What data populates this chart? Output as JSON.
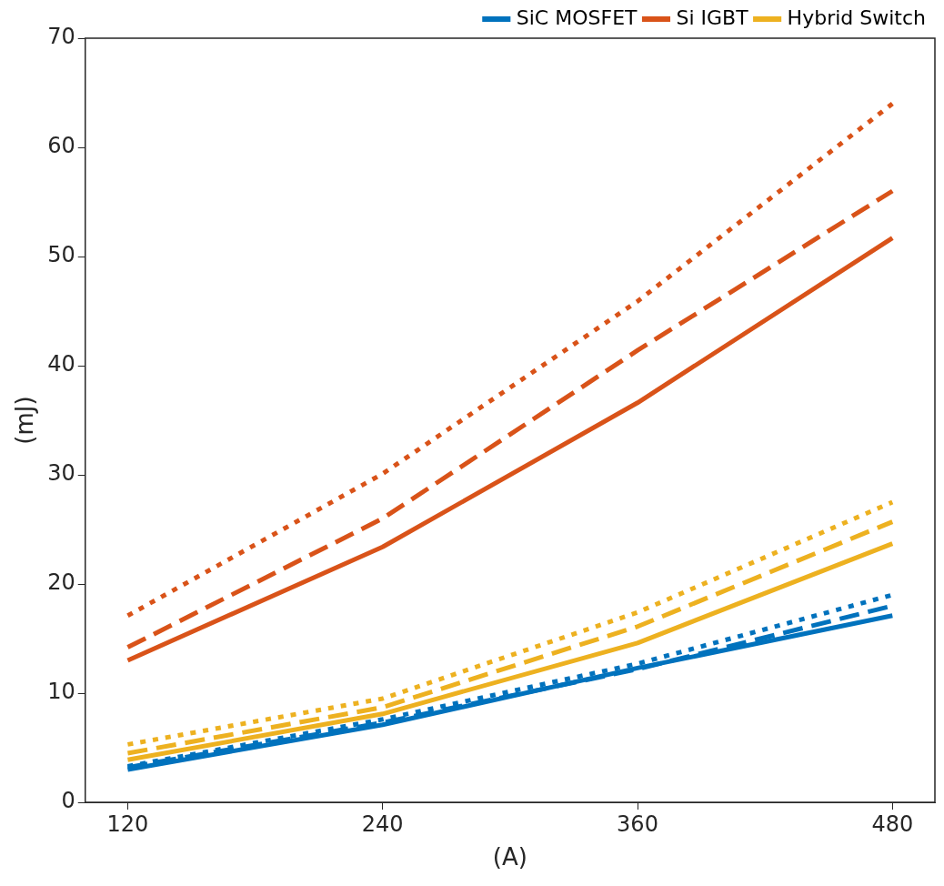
{
  "chart_data": {
    "type": "line",
    "xlabel": "(A)",
    "ylabel": "(mJ)",
    "x": [
      120,
      240,
      360,
      480
    ],
    "xlim": [
      100,
      500
    ],
    "xticks": [
      120,
      240,
      360,
      480
    ],
    "ylim": [
      0,
      70
    ],
    "yticks": [
      0,
      10,
      20,
      30,
      40,
      50,
      60,
      70
    ],
    "grid": false,
    "legend": "top right",
    "marker": "none",
    "series": [
      {
        "name": "SiC MOSFET",
        "color": "#0072bd",
        "line_style": "solid",
        "values": [
          3.0,
          7.1,
          12.3,
          17.1
        ]
      },
      {
        "name": "Si IGBT",
        "color": "#d95319",
        "line_style": "solid",
        "values": [
          13.0,
          23.4,
          36.6,
          51.7
        ]
      },
      {
        "name": "Hybrid Switch",
        "color": "#edb120",
        "line_style": "solid",
        "values": [
          3.9,
          8.1,
          14.6,
          23.7
        ]
      },
      {
        "color": "#0072bd",
        "line_style": "dashed",
        "values": [
          3.2,
          7.3,
          12.2,
          18.0
        ]
      },
      {
        "color": "#d95319",
        "line_style": "dashed",
        "values": [
          14.2,
          26.0,
          41.4,
          56.0
        ]
      },
      {
        "color": "#edb120",
        "line_style": "dashed",
        "values": [
          4.5,
          8.7,
          16.1,
          25.7
        ]
      },
      {
        "color": "#0072bd",
        "line_style": "dotted",
        "values": [
          3.3,
          7.6,
          12.7,
          19.0
        ]
      },
      {
        "color": "#d95319",
        "line_style": "dotted",
        "values": [
          17.1,
          30.1,
          45.9,
          64.0
        ]
      },
      {
        "color": "#edb120",
        "line_style": "dotted",
        "values": [
          5.3,
          9.5,
          17.4,
          27.5
        ]
      }
    ]
  }
}
